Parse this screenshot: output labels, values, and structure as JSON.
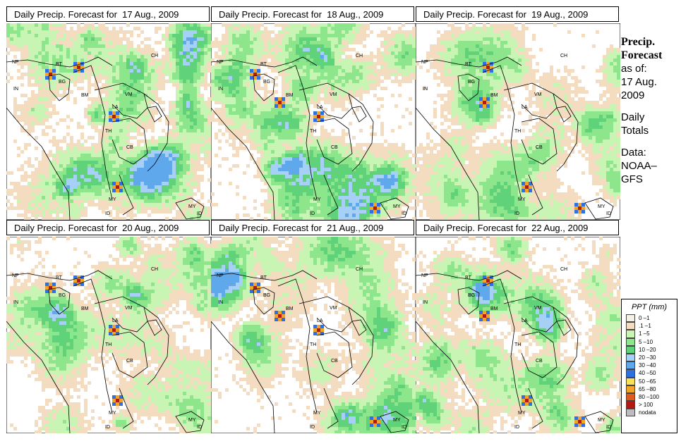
{
  "title_prefix": "Daily Precip. Forecast for",
  "panels": [
    {
      "date": "17 Aug., 2009"
    },
    {
      "date": "18 Aug., 2009"
    },
    {
      "date": "19 Aug., 2009"
    },
    {
      "date": "20 Aug., 2009"
    },
    {
      "date": "21 Aug., 2009"
    },
    {
      "date": "22 Aug., 2009"
    }
  ],
  "map_labels": [
    "CH",
    "NP",
    "BT",
    "IN",
    "BG",
    "BM",
    "VM",
    "LA",
    "TH",
    "CB",
    "MY",
    "ID",
    "MY",
    "ID"
  ],
  "side": {
    "line1": "Precip.",
    "line2": "Forecast",
    "line3": "as of:",
    "line4": "17 Aug.",
    "line5": "2009",
    "line6": "Daily",
    "line7": "Totals",
    "line8": "Data:",
    "line9": "NOAA–",
    "line10": "GFS"
  },
  "legend": {
    "title": "PPT (mm)",
    "entries": [
      {
        "label": "0 –1",
        "color": "#f5f0e6"
      },
      {
        "label": ".1 –1",
        "color": "#f3dcbf"
      },
      {
        "label": "1 –5",
        "color": "#c8f5b4"
      },
      {
        "label": "5 –10",
        "color": "#8ee68c"
      },
      {
        "label": "10 –20",
        "color": "#5fd27a"
      },
      {
        "label": "20 –30",
        "color": "#a6d0f5"
      },
      {
        "label": "30 –40",
        "color": "#5fa8ec"
      },
      {
        "label": "40 –50",
        "color": "#2f6fe0"
      },
      {
        "label": "50 –65",
        "color": "#f7e05a"
      },
      {
        "label": "65 –80",
        "color": "#f0a52a"
      },
      {
        "label": "80 –100",
        "color": "#e05a1a"
      },
      {
        "label": "> 100",
        "color": "#b01a10"
      },
      {
        "label": "nodata",
        "color": "#bdbdbd"
      }
    ]
  }
}
